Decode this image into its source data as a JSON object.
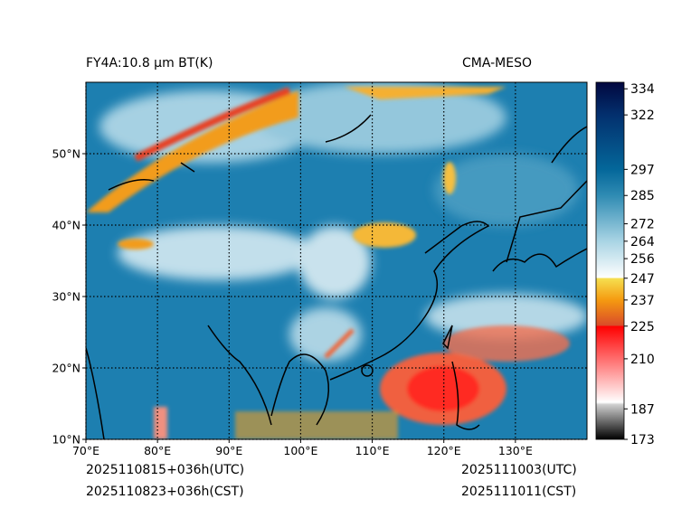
{
  "title_left": "FY4A:10.8 µm BT(K)",
  "title_right": "CMA-MESO",
  "footer": {
    "init_utc": "2025110815+036h(UTC)",
    "init_cst": "2025110823+036h(CST)",
    "valid_utc": "2025111003(UTC)",
    "valid_cst": "2025111011(CST)"
  },
  "map": {
    "lon_range": [
      70,
      140
    ],
    "lat_range": [
      10,
      60
    ],
    "lon_ticks": [
      70,
      80,
      90,
      100,
      110,
      120,
      130
    ],
    "lon_labels": [
      "70°E",
      "80°E",
      "90°E",
      "100°E",
      "110°E",
      "120°E",
      "130°E"
    ],
    "lat_ticks": [
      10,
      20,
      30,
      40,
      50
    ],
    "lat_labels": [
      "10°N",
      "20°N",
      "30°N",
      "40°N",
      "50°N"
    ]
  },
  "colorbar": {
    "range": [
      173,
      337
    ],
    "ticks": [
      173,
      187,
      210,
      225,
      237,
      247,
      256,
      264,
      272,
      285,
      297,
      322,
      334
    ],
    "tick_labels": [
      "173",
      "187",
      "210",
      "225",
      "237",
      "247",
      "256",
      "264",
      "272",
      "285",
      "297",
      "322",
      "334"
    ],
    "stops": [
      {
        "v": 173,
        "c": "#000000"
      },
      {
        "v": 189,
        "c": "#cfcfcf"
      },
      {
        "v": 190,
        "c": "#ffffff"
      },
      {
        "v": 225,
        "c": "#ff0000"
      },
      {
        "v": 225.1,
        "c": "#d94a2a"
      },
      {
        "v": 237,
        "c": "#f59a10"
      },
      {
        "v": 247,
        "c": "#f5e050"
      },
      {
        "v": 247.1,
        "c": "#ffffff"
      },
      {
        "v": 264,
        "c": "#a9d4e4"
      },
      {
        "v": 285,
        "c": "#2f8bb3"
      },
      {
        "v": 297,
        "c": "#04679a"
      },
      {
        "v": 322,
        "c": "#03306e"
      },
      {
        "v": 337,
        "c": "#02073f"
      }
    ]
  }
}
